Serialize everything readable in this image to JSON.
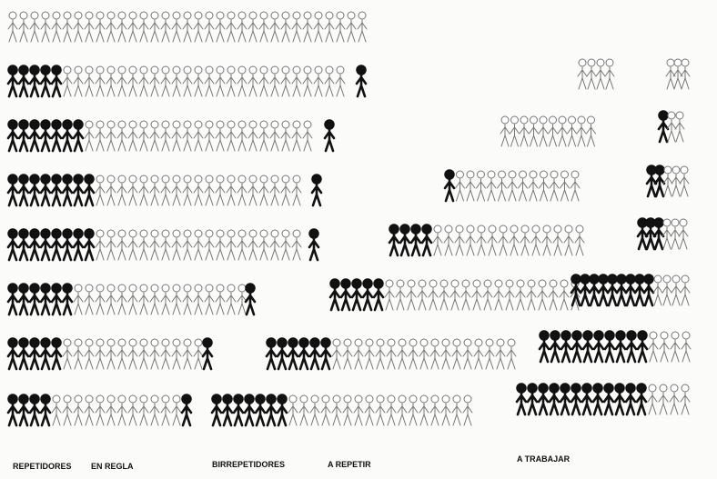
{
  "labels": [
    "REPETIDORES",
    "EN REGLA",
    "BIRREPETIDORES",
    "A REPETIR",
    "A TRABAJAR"
  ]
}
